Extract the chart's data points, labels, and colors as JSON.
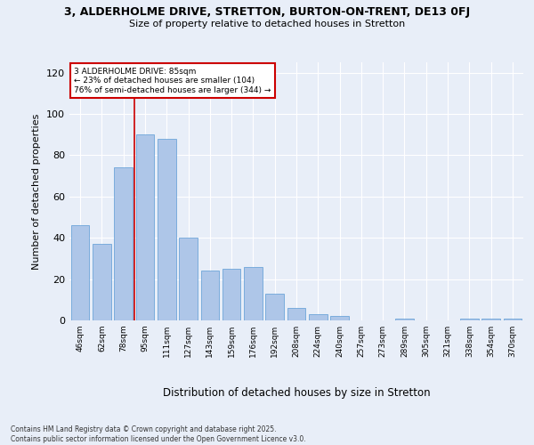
{
  "title": "3, ALDERHOLME DRIVE, STRETTON, BURTON-ON-TRENT, DE13 0FJ",
  "subtitle": "Size of property relative to detached houses in Stretton",
  "xlabel": "Distribution of detached houses by size in Stretton",
  "ylabel": "Number of detached properties",
  "bar_labels": [
    "46sqm",
    "62sqm",
    "78sqm",
    "95sqm",
    "111sqm",
    "127sqm",
    "143sqm",
    "159sqm",
    "176sqm",
    "192sqm",
    "208sqm",
    "224sqm",
    "240sqm",
    "257sqm",
    "273sqm",
    "289sqm",
    "305sqm",
    "321sqm",
    "338sqm",
    "354sqm",
    "370sqm"
  ],
  "bar_values": [
    46,
    37,
    74,
    90,
    88,
    40,
    24,
    25,
    26,
    13,
    6,
    3,
    2,
    0,
    0,
    1,
    0,
    0,
    1,
    1,
    1
  ],
  "bar_color": "#aec6e8",
  "bar_edge_color": "#5b9bd5",
  "background_color": "#e8eef8",
  "grid_color": "#ffffff",
  "ylim": [
    0,
    125
  ],
  "yticks": [
    0,
    20,
    40,
    60,
    80,
    100,
    120
  ],
  "annotation_title": "3 ALDERHOLME DRIVE: 85sqm",
  "annotation_line1": "← 23% of detached houses are smaller (104)",
  "annotation_line2": "76% of semi-detached houses are larger (344) →",
  "redline_x": 2.5,
  "annotation_box_color": "#ffffff",
  "annotation_box_edge_color": "#cc0000",
  "footer_line1": "Contains HM Land Registry data © Crown copyright and database right 2025.",
  "footer_line2": "Contains public sector information licensed under the Open Government Licence v3.0."
}
